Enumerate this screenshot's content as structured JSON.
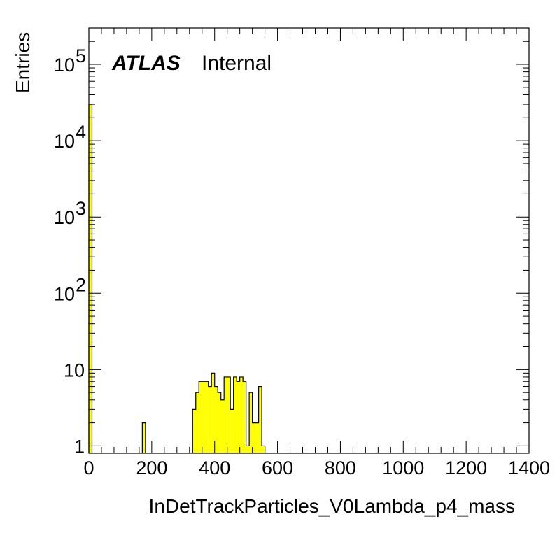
{
  "chart_data": {
    "type": "bar",
    "title": "",
    "xlabel": "InDetTrackParticles_V0Lambda_p4_mass",
    "ylabel": "Entries",
    "log_y": true,
    "xlim": [
      0,
      1400
    ],
    "ylim": [
      0.8,
      300000
    ],
    "grid": false,
    "legend": "none",
    "bar_color": "#ffff00",
    "bin_width": 10,
    "x_ticks": [
      "0",
      "200",
      "400",
      "600",
      "800",
      "1000",
      "1200",
      "1400"
    ],
    "y_ticks": [
      {
        "value": 1,
        "base": "1",
        "exp": ""
      },
      {
        "value": 10,
        "base": "10",
        "exp": ""
      },
      {
        "value": 100,
        "base": "10",
        "exp": "2"
      },
      {
        "value": 1000,
        "base": "10",
        "exp": "3"
      },
      {
        "value": 10000,
        "base": "10",
        "exp": "4"
      },
      {
        "value": 100000,
        "base": "10",
        "exp": "5"
      }
    ],
    "bins": [
      {
        "x": 0,
        "y": 30000
      },
      {
        "x": 170,
        "y": 2
      },
      {
        "x": 330,
        "y": 3
      },
      {
        "x": 340,
        "y": 5
      },
      {
        "x": 350,
        "y": 7
      },
      {
        "x": 360,
        "y": 7
      },
      {
        "x": 370,
        "y": 7
      },
      {
        "x": 380,
        "y": 6
      },
      {
        "x": 390,
        "y": 9
      },
      {
        "x": 400,
        "y": 6
      },
      {
        "x": 410,
        "y": 5
      },
      {
        "x": 420,
        "y": 4
      },
      {
        "x": 430,
        "y": 8
      },
      {
        "x": 440,
        "y": 8
      },
      {
        "x": 450,
        "y": 3
      },
      {
        "x": 460,
        "y": 8
      },
      {
        "x": 470,
        "y": 7
      },
      {
        "x": 480,
        "y": 8
      },
      {
        "x": 490,
        "y": 7
      },
      {
        "x": 500,
        "y": 1
      },
      {
        "x": 510,
        "y": 5
      },
      {
        "x": 520,
        "y": 2
      },
      {
        "x": 530,
        "y": 2
      },
      {
        "x": 540,
        "y": 6
      },
      {
        "x": 550,
        "y": 1
      }
    ]
  },
  "labels": {
    "atlas": "ATLAS",
    "status": "Internal"
  }
}
